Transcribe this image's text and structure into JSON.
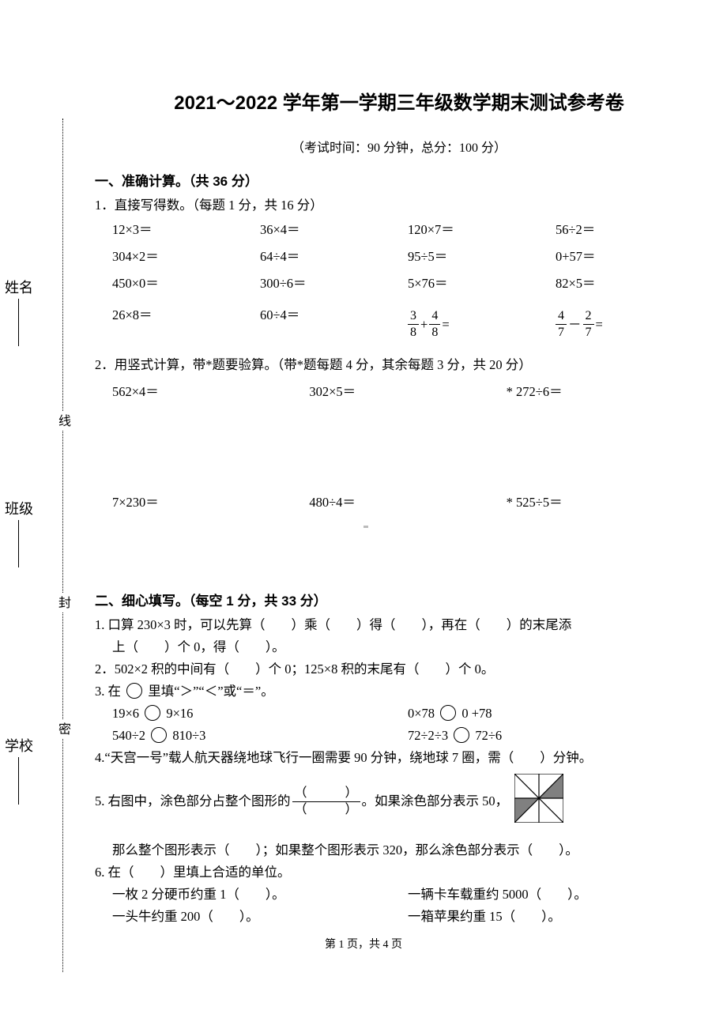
{
  "title": "2021～2022 学年第一学期三年级数学期末测试参考卷",
  "subtitle": "（考试时间：90 分钟，总分：100 分）",
  "binding": {
    "top": "线",
    "mid": "封",
    "bot": "密"
  },
  "side": {
    "name": "姓名",
    "class": "班级",
    "school": "学校"
  },
  "sec1": {
    "head": "一、准确计算。（共 36 分）",
    "q1": {
      "stem": "1．直接写得数。（每题 1 分，共 16 分）",
      "rows": [
        [
          "12×3＝",
          "36×4＝",
          "120×7＝",
          "56÷2＝"
        ],
        [
          "304×2＝",
          "64÷4＝",
          "95÷5＝",
          "0+57＝"
        ],
        [
          "450×0＝",
          "300÷6＝",
          "5×76＝",
          "82×5＝"
        ]
      ],
      "row4": {
        "a": "26×8＝",
        "b": "60÷4＝",
        "c": {
          "n1": "3",
          "d1": "8",
          "op": "+",
          "n2": "4",
          "d2": "8",
          "eq": "="
        },
        "d": {
          "n1": "4",
          "d1": "7",
          "op": "－",
          "n2": "2",
          "d2": "7",
          "eq": "="
        }
      }
    },
    "q2": {
      "stem": "2．用竖式计算，带*题要验算。（带*题每题 4 分，其余每题 3 分，共 20 分）",
      "row1": [
        "562×4＝",
        "302×5＝",
        "* 272÷6＝"
      ],
      "row2": [
        "7×230＝",
        "480÷4＝",
        "* 525÷5＝"
      ]
    }
  },
  "sec2": {
    "head": "二、细心填写。（每空 1 分，共 33 分）",
    "q1a": "1. 口算 230×3 时，可以先算（　　）乘（　　）得（　　），再在（　　）的末尾添",
    "q1b": "上（　　）个 0，得（　　）。",
    "q2": "2．502×2 积的中间有（　　）个 0；125×8 积的末尾有（　　）个 0。",
    "q3": "3. 在",
    "q3tail": "里填“＞”“＜”或“＝”。",
    "q3r1a": "19×6",
    "q3r1b": "9×16",
    "q3r1c": "0×78",
    "q3r1d": "0 +78",
    "q3r2a": "540÷2",
    "q3r2b": "810÷3",
    "q3r2c": "72÷2÷3",
    "q3r2d": "72÷6",
    "q4": "4.“天宫一号”载人航天器绕地球飞行一圈需要 90 分钟，绕地球 7 圈，需（　　）分钟。",
    "q5a": "5. 右图中，涂色部分占整个图形的",
    "q5frac": {
      "n": "（　　　）",
      "d": "（　　　）"
    },
    "q5b": "。如果涂色部分表示 50，",
    "q5c": "那么整个图形表示（　　）；如果整个图形表示 320，那么涂色部分表示（　　）。",
    "q6": "6. 在（　　）里填上合适的单位。",
    "q6r1a": "一枚 2 分硬币约重 1（　　）。",
    "q6r1b": "一辆卡车载重约 5000（　　）。",
    "q6r2a": "一头牛约重 200（　　）。",
    "q6r2b": "一箱苹果约重 15（　　）。"
  },
  "q5_figure": {
    "size": 62,
    "stroke": "#000000",
    "shaded_triangles": [
      [
        31,
        31,
        62,
        0,
        62,
        31
      ],
      [
        31,
        31,
        0,
        31,
        0,
        62
      ]
    ],
    "fill": "#808080"
  },
  "footer": "第 1 页，共 4 页"
}
